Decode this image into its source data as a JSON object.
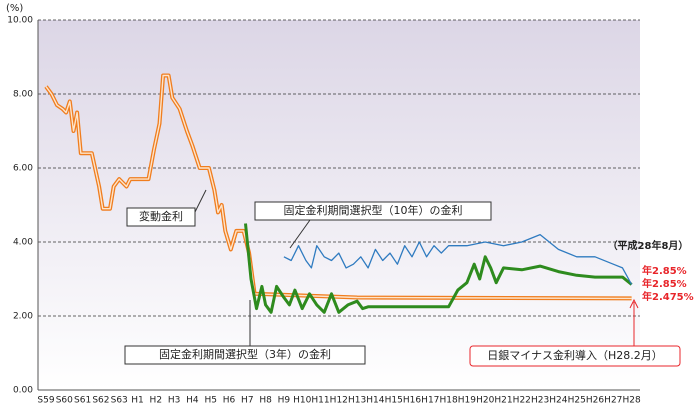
{
  "chart_data": {
    "type": "line",
    "unit_label": "(%)",
    "categories": [
      "S59",
      "S60",
      "S61",
      "S62",
      "S63",
      "H1",
      "H2",
      "H3",
      "H4",
      "H5",
      "H6",
      "H7",
      "H8",
      "H9",
      "H10",
      "H11",
      "H12",
      "H13",
      "H14",
      "H15",
      "H16",
      "H17",
      "H18",
      "H19",
      "H20",
      "H21",
      "H22",
      "H23",
      "H24",
      "H25",
      "H26",
      "H27",
      "H28"
    ],
    "ylim": [
      0,
      10
    ],
    "yticks": [
      {
        "value": 0,
        "label": "0.00"
      },
      {
        "value": 2,
        "label": "2.00"
      },
      {
        "value": 4,
        "label": "4.00"
      },
      {
        "value": 6,
        "label": "6.00"
      },
      {
        "value": 8,
        "label": "8.00"
      },
      {
        "value": 10,
        "label": "10.00"
      }
    ],
    "grid": true,
    "series": [
      {
        "name": "変動金利",
        "color": "#f07d1e",
        "end_label": "年2.475%",
        "x": [
          0,
          0.3,
          0.6,
          0.9,
          1.1,
          1.3,
          1.5,
          1.7,
          1.9,
          2.5,
          2.9,
          3.1,
          3.5,
          3.7,
          4.0,
          4.4,
          4.6,
          5.6,
          5.9,
          6.2,
          6.4,
          6.7,
          6.9,
          7.3,
          7.7,
          8.0,
          8.4,
          8.9,
          9.2,
          9.4,
          9.6,
          9.8,
          10.1,
          10.4,
          10.8,
          11.1,
          11.4,
          17.0,
          32
        ],
        "values": [
          8.2,
          8.0,
          7.7,
          7.6,
          7.5,
          7.8,
          7.0,
          7.5,
          6.4,
          6.4,
          5.5,
          4.9,
          4.9,
          5.5,
          5.7,
          5.5,
          5.7,
          5.7,
          6.5,
          7.2,
          8.5,
          8.5,
          7.9,
          7.6,
          7.0,
          6.6,
          6.0,
          6.0,
          5.4,
          4.8,
          5.0,
          4.3,
          3.8,
          4.3,
          4.3,
          3.7,
          2.6,
          2.5,
          2.475
        ]
      },
      {
        "name": "固定金利期間選択型（3年）の金利",
        "color": "#2e8b1e",
        "end_label": "年2.85%",
        "x": [
          10.9,
          11.2,
          11.5,
          11.8,
          12.0,
          12.3,
          12.6,
          13.0,
          13.3,
          13.6,
          14.0,
          14.4,
          14.8,
          15.2,
          15.6,
          16.0,
          16.5,
          17.0,
          17.3,
          17.6,
          22.0,
          22.5,
          23.0,
          23.4,
          23.7,
          24.0,
          24.3,
          24.6,
          25.0,
          26.0,
          27.0,
          28.0,
          29.0,
          30.0,
          31.5,
          32.0
        ],
        "values": [
          4.5,
          3.0,
          2.2,
          2.8,
          2.3,
          2.1,
          2.8,
          2.5,
          2.3,
          2.7,
          2.2,
          2.6,
          2.3,
          2.1,
          2.6,
          2.1,
          2.3,
          2.4,
          2.2,
          2.25,
          2.25,
          2.7,
          2.9,
          3.4,
          3.0,
          3.6,
          3.3,
          2.9,
          3.3,
          3.25,
          3.35,
          3.2,
          3.1,
          3.05,
          3.05,
          2.85
        ]
      },
      {
        "name": "固定金利期間選択型（10年）の金利",
        "color": "#2f7bc0",
        "end_label": "年2.85%",
        "x": [
          13.0,
          13.4,
          13.8,
          14.2,
          14.5,
          14.8,
          15.2,
          15.6,
          16.0,
          16.4,
          16.8,
          17.2,
          17.6,
          18.0,
          18.4,
          18.8,
          19.2,
          19.6,
          20.0,
          20.4,
          20.8,
          21.2,
          21.6,
          22.0,
          23.0,
          24.0,
          25.0,
          26.0,
          27.0,
          28.0,
          29.0,
          30.0,
          31.0,
          31.5,
          32.0
        ],
        "values": [
          3.6,
          3.5,
          3.9,
          3.5,
          3.3,
          3.9,
          3.6,
          3.5,
          3.7,
          3.3,
          3.4,
          3.6,
          3.3,
          3.8,
          3.5,
          3.7,
          3.4,
          3.9,
          3.6,
          4.0,
          3.6,
          3.9,
          3.7,
          3.9,
          3.9,
          4.0,
          3.9,
          4.0,
          4.2,
          3.8,
          3.6,
          3.6,
          3.4,
          3.3,
          2.85
        ]
      }
    ],
    "date_note": "（平成28年8月）",
    "event_note": "日銀マイナス金利導入（H28.2月）"
  }
}
